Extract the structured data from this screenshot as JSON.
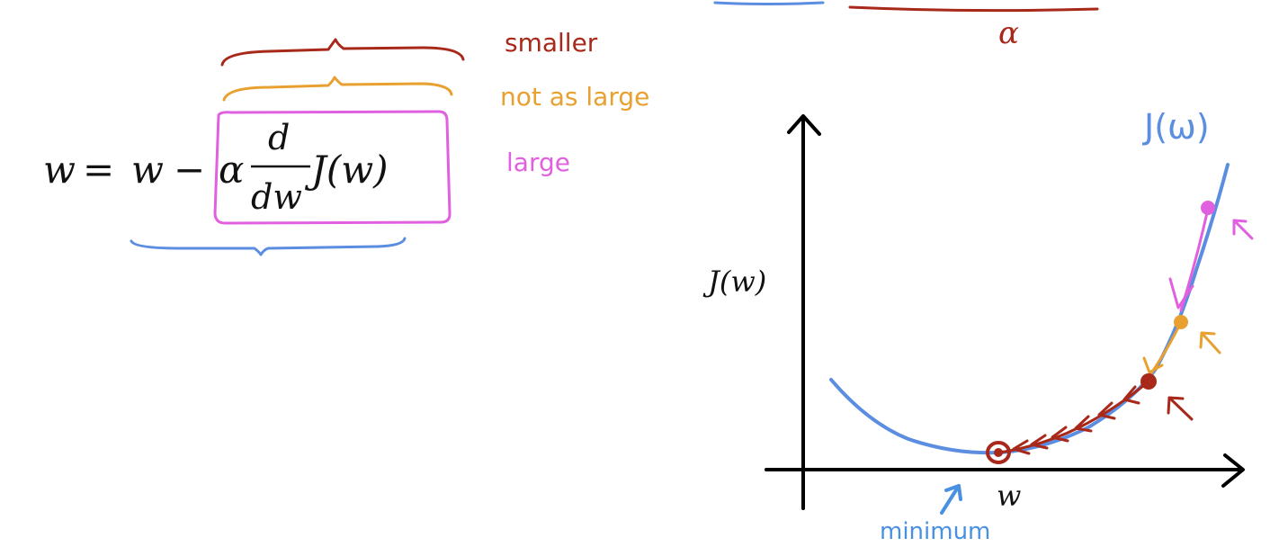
{
  "equation": {
    "lhs": "w",
    "equals": "=",
    "w2": "w",
    "minus": "−",
    "alpha": "α",
    "num": "d",
    "den": "dw",
    "func": "J(w)"
  },
  "labels": {
    "smaller": "smaller",
    "not_as_large": "not as large",
    "large": "large",
    "alpha_top": "α",
    "curve_label": "J(ω)",
    "y_axis": "J(w)",
    "x_axis": "w",
    "minimum": "minimum"
  },
  "colors": {
    "smaller": "#a8281a",
    "not_as_large": "#e8a030",
    "large": "#e060e0",
    "curve": "#5b8de0",
    "minimum": "#4a90e2",
    "axis": "#000000"
  }
}
